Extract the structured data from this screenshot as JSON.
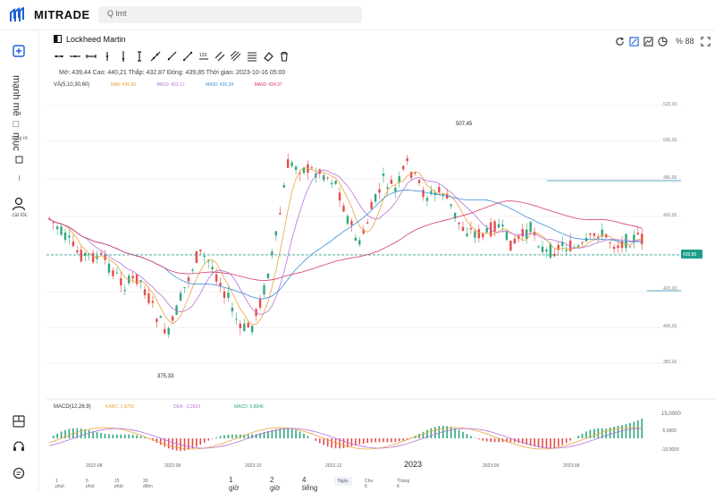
{
  "app": {
    "brand": "MITRADE",
    "search_placeholder": "Q lmt"
  },
  "sidebar": {
    "market_label": "mạnh mẽ □ mục",
    "market_sub": "thay in",
    "user_label": "cài tốc"
  },
  "instrument": {
    "name": "Lockheed Martin"
  },
  "header": {
    "zoom": "% 88",
    "ohlc": "Mở: 439,44 Cao: 440,21 Thấp: 432,87 Đóng: 439,85 Thời gian: 2023-10-16 05:00"
  },
  "indicators": {
    "volume": "VÀ(5,10,30,60)",
    "ma5": "MA5: 436,88",
    "ma10": "MA10: 422,17",
    "ma30": "MA30: 420,34",
    "ma60": "MA60: 434,97",
    "macd": "MACD(12,26,9)",
    "dif": "KARC: 1,8759",
    "dea": "DEA: -3,2623",
    "macd_val": "MACD: 5,8846"
  },
  "colors": {
    "up": "#2fa87a",
    "down": "#e64c4c",
    "ma5": "#e8a33c",
    "ma10": "#b772d8",
    "ma30": "#3a8fd6",
    "ma60": "#d63a6f",
    "current_price_bg": "#1e9c8b"
  },
  "chart_data": {
    "type": "candlestick",
    "y_ticks": [
      "520,00",
      "500,00",
      "480,00",
      "460,00",
      "420,00",
      "400,00",
      "380,00"
    ],
    "current_price": "439,85",
    "annotations": {
      "high": "507,45",
      "low": "375,33"
    },
    "x_ticks": [
      "2022-08",
      "2022-06",
      "2022-10",
      "2022-12",
      "2023",
      "2023-05",
      "2023-08"
    ],
    "macd_ticks": [
      "15,0000",
      "-5,0000",
      "-10,0000"
    ]
  },
  "timeframes": [
    "1 phút",
    "5 phút",
    "15 phút",
    "30 điểm",
    "1 giờ",
    "2 giờ",
    "4 tiếng",
    "Ngày",
    "Chu K",
    "Tháng K"
  ]
}
